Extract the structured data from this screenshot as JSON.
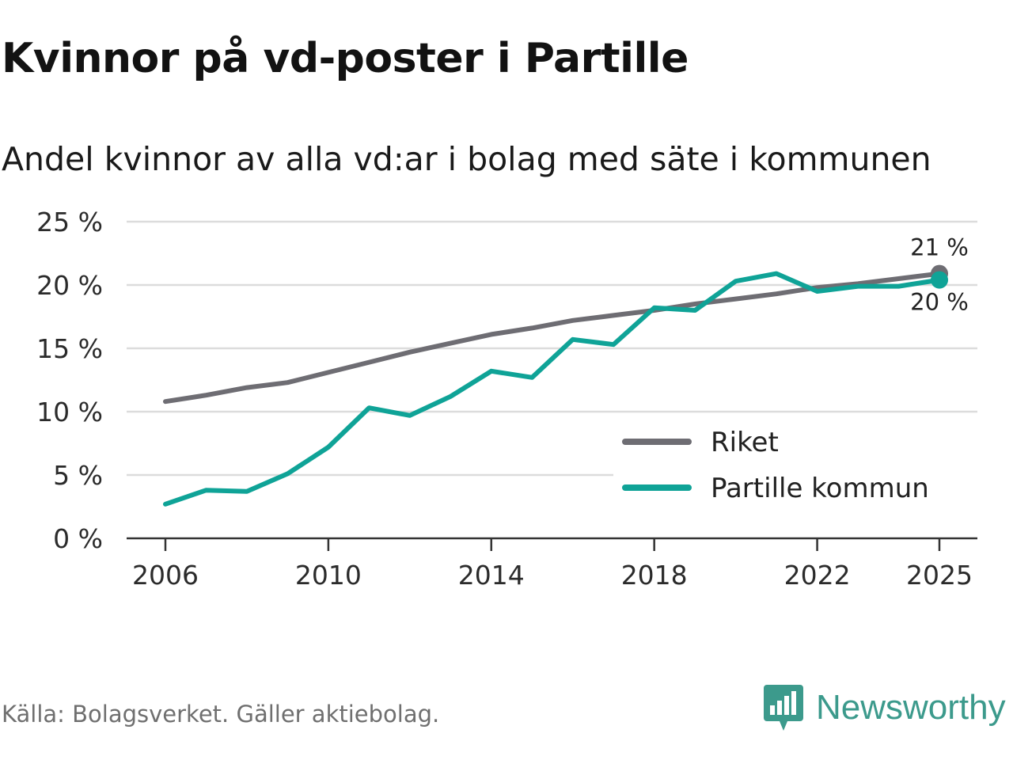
{
  "title": "Kvinnor på vd-poster i Partille",
  "subtitle": "Andel kvinnor av alla vd:ar i bolag med säte i kommunen",
  "source": "Källa: Bolagsverket. Gäller aktiebolag.",
  "brand": {
    "name": "Newsworthy",
    "color": "#3c9a8c",
    "icon": "newsworthy-logo-icon"
  },
  "chart_data": {
    "type": "line",
    "title": "Kvinnor på vd-poster i Partille",
    "subtitle": "Andel kvinnor av alla vd:ar i bolag med säte i kommunen",
    "xlabel": "",
    "ylabel": "",
    "x": [
      2006,
      2007,
      2008,
      2009,
      2010,
      2011,
      2012,
      2013,
      2014,
      2015,
      2016,
      2017,
      2018,
      2019,
      2020,
      2021,
      2022,
      2023,
      2024,
      2025
    ],
    "xlim": [
      2006,
      2025
    ],
    "ylim": [
      0,
      25
    ],
    "x_ticks": [
      2006,
      2010,
      2014,
      2018,
      2022,
      2025
    ],
    "x_tick_labels": [
      "2006",
      "2010",
      "2014",
      "2018",
      "2022",
      "2025"
    ],
    "y_ticks": [
      0,
      5,
      10,
      15,
      20,
      25
    ],
    "y_tick_labels": [
      "0 %",
      "5 %",
      "10 %",
      "15 %",
      "20 %",
      "25 %"
    ],
    "grid": true,
    "legend_position": "bottom-right",
    "series": [
      {
        "name": "Riket",
        "color": "#6e6d73",
        "values": [
          10.8,
          11.3,
          11.9,
          12.3,
          13.1,
          13.9,
          14.7,
          15.4,
          16.1,
          16.6,
          17.2,
          17.6,
          18.0,
          18.5,
          18.9,
          19.3,
          19.8,
          20.1,
          20.5,
          20.9
        ],
        "end_label": "21 %"
      },
      {
        "name": "Partille kommun",
        "color": "#0fa397",
        "values": [
          2.7,
          3.8,
          3.7,
          5.1,
          7.2,
          10.3,
          9.7,
          11.2,
          13.2,
          12.7,
          15.7,
          15.3,
          18.2,
          18.0,
          20.3,
          20.9,
          19.5,
          19.9,
          19.9,
          20.4
        ],
        "end_label": "20 %"
      }
    ]
  }
}
